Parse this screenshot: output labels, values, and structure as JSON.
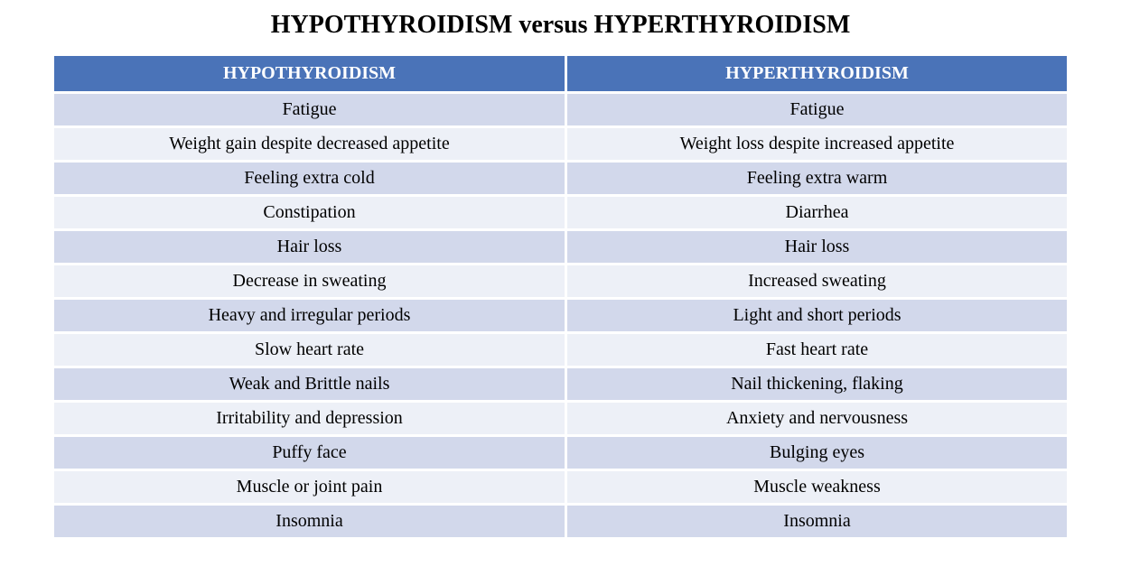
{
  "title": "HYPOTHYROIDISM versus HYPERTHYROIDISM",
  "columns": [
    "HYPOTHYROIDISM",
    "HYPERTHYROIDISM"
  ],
  "rows": [
    [
      "Fatigue",
      "Fatigue"
    ],
    [
      "Weight gain despite decreased appetite",
      "Weight loss despite increased appetite"
    ],
    [
      "Feeling extra cold",
      "Feeling extra warm"
    ],
    [
      "Constipation",
      "Diarrhea"
    ],
    [
      "Hair loss",
      "Hair loss"
    ],
    [
      "Decrease in sweating",
      "Increased sweating"
    ],
    [
      "Heavy and irregular periods",
      "Light and short periods"
    ],
    [
      "Slow heart rate",
      "Fast heart rate"
    ],
    [
      "Weak and Brittle nails",
      "Nail thickening, flaking"
    ],
    [
      "Irritability and depression",
      "Anxiety and nervousness"
    ],
    [
      "Puffy face",
      "Bulging eyes"
    ],
    [
      "Muscle or joint pain",
      "Muscle weakness"
    ],
    [
      "Insomnia",
      "Insomnia"
    ]
  ],
  "style": {
    "type": "table",
    "header_bg": "#4a73b8",
    "header_text_color": "#ffffff",
    "row_bg_odd": "#d2d8eb",
    "row_bg_even": "#edf0f7",
    "cell_text_color": "#000000",
    "title_fontsize": 28,
    "header_fontsize": 20,
    "cell_fontsize": 20,
    "border_color": "#ffffff",
    "border_width": 3,
    "font_family": "Times New Roman"
  }
}
